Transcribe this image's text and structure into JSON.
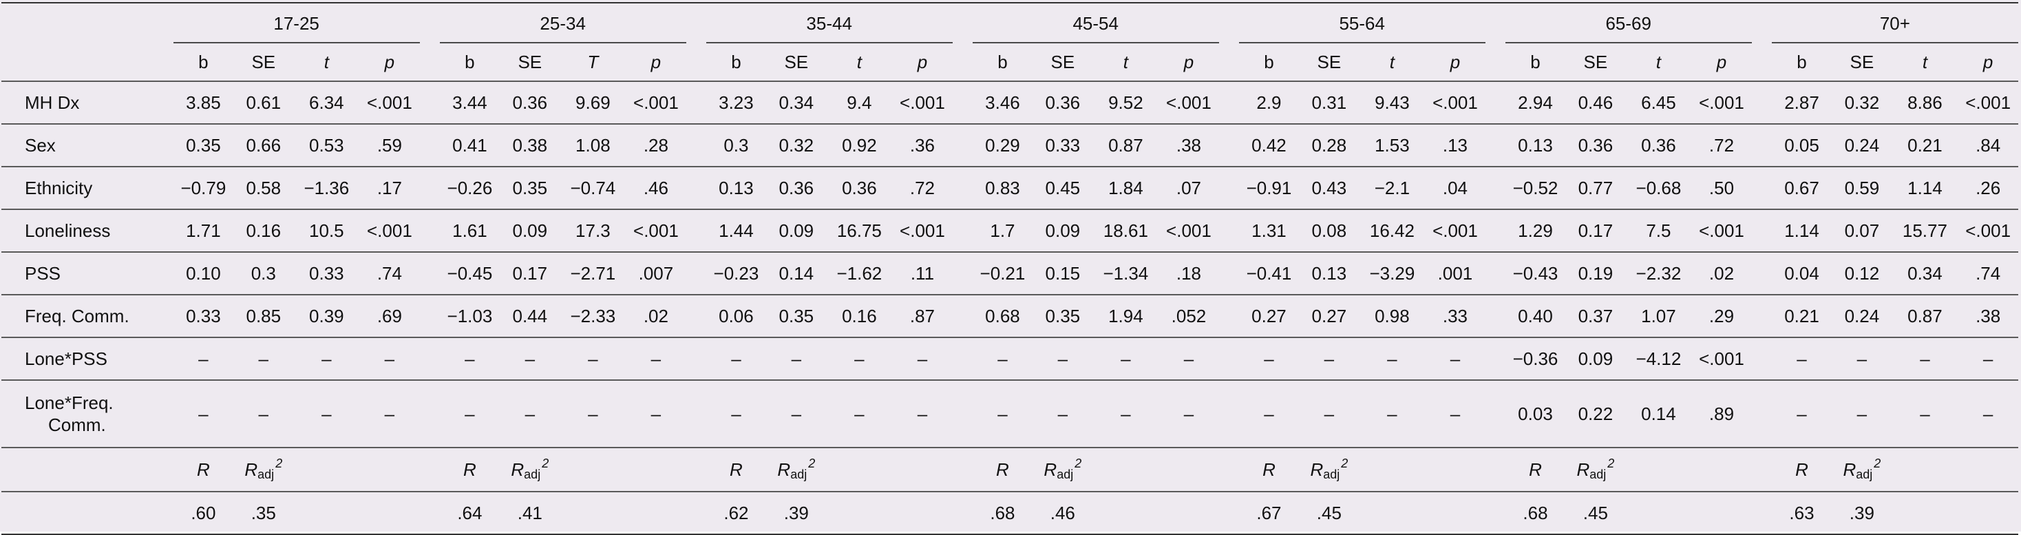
{
  "groups": [
    "17-25",
    "25-34",
    "35-44",
    "45-54",
    "55-64",
    "65-69",
    "70+"
  ],
  "subheaders": [
    [
      "b",
      "SE",
      "t",
      "p"
    ],
    [
      "b",
      "SE",
      "T",
      "p"
    ],
    [
      "b",
      "SE",
      "t",
      "p"
    ],
    [
      "b",
      "SE",
      "t",
      "p"
    ],
    [
      "b",
      "SE",
      "t",
      "p"
    ],
    [
      "b",
      "SE",
      "t",
      "p"
    ],
    [
      "b",
      "SE",
      "t",
      "p"
    ]
  ],
  "rows": [
    {
      "label": "MH Dx",
      "cells": [
        [
          "3.85",
          "0.61",
          "6.34",
          "<.001"
        ],
        [
          "3.44",
          "0.36",
          "9.69",
          "<.001"
        ],
        [
          "3.23",
          "0.34",
          "9.4",
          "<.001"
        ],
        [
          "3.46",
          "0.36",
          "9.52",
          "<.001"
        ],
        [
          "2.9",
          "0.31",
          "9.43",
          "<.001"
        ],
        [
          "2.94",
          "0.46",
          "6.45",
          "<.001"
        ],
        [
          "2.87",
          "0.32",
          "8.86",
          "<.001"
        ]
      ]
    },
    {
      "label": "Sex",
      "cells": [
        [
          "0.35",
          "0.66",
          "0.53",
          ".59"
        ],
        [
          "0.41",
          "0.38",
          "1.08",
          ".28"
        ],
        [
          "0.3",
          "0.32",
          "0.92",
          ".36"
        ],
        [
          "0.29",
          "0.33",
          "0.87",
          ".38"
        ],
        [
          "0.42",
          "0.28",
          "1.53",
          ".13"
        ],
        [
          "0.13",
          "0.36",
          "0.36",
          ".72"
        ],
        [
          "0.05",
          "0.24",
          "0.21",
          ".84"
        ]
      ]
    },
    {
      "label": "Ethnicity",
      "cells": [
        [
          "−0.79",
          "0.58",
          "−1.36",
          ".17"
        ],
        [
          "−0.26",
          "0.35",
          "−0.74",
          ".46"
        ],
        [
          "0.13",
          "0.36",
          "0.36",
          ".72"
        ],
        [
          "0.83",
          "0.45",
          "1.84",
          ".07"
        ],
        [
          "−0.91",
          "0.43",
          "−2.1",
          ".04"
        ],
        [
          "−0.52",
          "0.77",
          "−0.68",
          ".50"
        ],
        [
          "0.67",
          "0.59",
          "1.14",
          ".26"
        ]
      ]
    },
    {
      "label": "Loneliness",
      "cells": [
        [
          "1.71",
          "0.16",
          "10.5",
          "<.001"
        ],
        [
          "1.61",
          "0.09",
          "17.3",
          "<.001"
        ],
        [
          "1.44",
          "0.09",
          "16.75",
          "<.001"
        ],
        [
          "1.7",
          "0.09",
          "18.61",
          "<.001"
        ],
        [
          "1.31",
          "0.08",
          "16.42",
          "<.001"
        ],
        [
          "1.29",
          "0.17",
          "7.5",
          "<.001"
        ],
        [
          "1.14",
          "0.07",
          "15.77",
          "<.001"
        ]
      ]
    },
    {
      "label": "PSS",
      "cells": [
        [
          "0.10",
          "0.3",
          "0.33",
          ".74"
        ],
        [
          "−0.45",
          "0.17",
          "−2.71",
          ".007"
        ],
        [
          "−0.23",
          "0.14",
          "−1.62",
          ".11"
        ],
        [
          "−0.21",
          "0.15",
          "−1.34",
          ".18"
        ],
        [
          "−0.41",
          "0.13",
          "−3.29",
          ".001"
        ],
        [
          "−0.43",
          "0.19",
          "−2.32",
          ".02"
        ],
        [
          "0.04",
          "0.12",
          "0.34",
          ".74"
        ]
      ]
    },
    {
      "label": "Freq. Comm.",
      "cells": [
        [
          "0.33",
          "0.85",
          "0.39",
          ".69"
        ],
        [
          "−1.03",
          "0.44",
          "−2.33",
          ".02"
        ],
        [
          "0.06",
          "0.35",
          "0.16",
          ".87"
        ],
        [
          "0.68",
          "0.35",
          "1.94",
          ".052"
        ],
        [
          "0.27",
          "0.27",
          "0.98",
          ".33"
        ],
        [
          "0.40",
          "0.37",
          "1.07",
          ".29"
        ],
        [
          "0.21",
          "0.24",
          "0.87",
          ".38"
        ]
      ]
    },
    {
      "label": "Lone*PSS",
      "cells": [
        [
          "–",
          "–",
          "–",
          "–"
        ],
        [
          "–",
          "–",
          "–",
          "–"
        ],
        [
          "–",
          "–",
          "–",
          "–"
        ],
        [
          "–",
          "–",
          "–",
          "–"
        ],
        [
          "–",
          "–",
          "–",
          "–"
        ],
        [
          "−0.36",
          "0.09",
          "−4.12",
          "<.001"
        ],
        [
          "–",
          "–",
          "–",
          "–"
        ]
      ]
    },
    {
      "label": "Lone*Freq. Comm.",
      "label_line1": "Lone*Freq.",
      "label_line2": "Comm.",
      "cells": [
        [
          "–",
          "–",
          "–",
          "–"
        ],
        [
          "–",
          "–",
          "–",
          "–"
        ],
        [
          "–",
          "–",
          "–",
          "–"
        ],
        [
          "–",
          "–",
          "–",
          "–"
        ],
        [
          "–",
          "–",
          "–",
          "–"
        ],
        [
          "0.03",
          "0.22",
          "0.14",
          ".89"
        ],
        [
          "–",
          "–",
          "–",
          "–"
        ]
      ]
    }
  ],
  "bold_b": [
    [
      true,
      true,
      true,
      true,
      true,
      true,
      true
    ],
    [
      false,
      false,
      false,
      false,
      false,
      false,
      false
    ],
    [
      false,
      false,
      false,
      false,
      true,
      false,
      false
    ],
    [
      true,
      true,
      true,
      true,
      true,
      true,
      true
    ],
    [
      false,
      true,
      false,
      false,
      true,
      true,
      false
    ],
    [
      false,
      true,
      false,
      false,
      false,
      false,
      false
    ],
    [
      false,
      false,
      false,
      false,
      false,
      true,
      false
    ],
    [
      false,
      false,
      false,
      false,
      false,
      false,
      false
    ]
  ],
  "stat_labels": {
    "r": "R",
    "radj_main": "R",
    "radj_sub": "adj",
    "radj_sup": "2"
  },
  "r_values": [
    ".60",
    ".64",
    ".62",
    ".68",
    ".67",
    ".68",
    ".63"
  ],
  "radj_values": [
    ".35",
    ".41",
    ".39",
    ".46",
    ".45",
    ".45",
    ".39"
  ]
}
